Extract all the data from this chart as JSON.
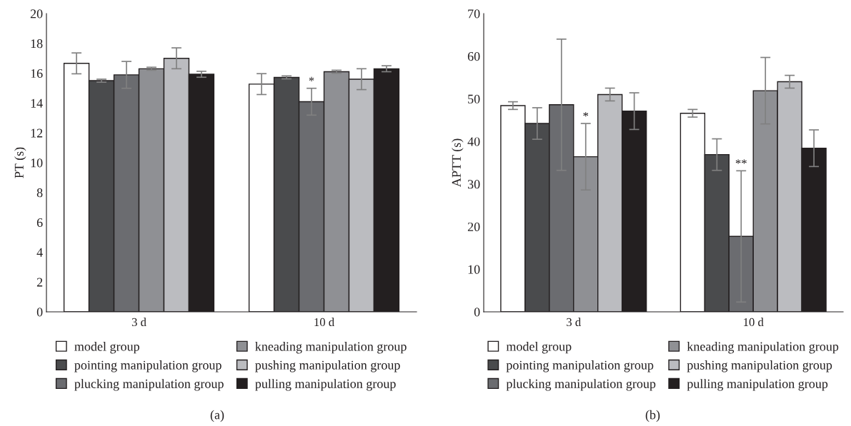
{
  "chart_data": [
    {
      "type": "bar",
      "categories": [
        "3 d",
        "10 d"
      ],
      "ylabel": "PT (s)",
      "ylim": [
        0,
        20
      ],
      "yticks": [
        0,
        2,
        4,
        6,
        8,
        10,
        12,
        14,
        16,
        18,
        20
      ],
      "grid": false,
      "legend": "bottom",
      "series": [
        {
          "name": "model group",
          "color": "#ffffff",
          "values": [
            16.66,
            15.27
          ],
          "errors": [
            0.7,
            0.7
          ]
        },
        {
          "name": "pointing manipulation group",
          "color": "#4a4b4d",
          "values": [
            15.5,
            15.72
          ],
          "errors": [
            0.1,
            0.1
          ]
        },
        {
          "name": "plucking manipulation group",
          "color": "#6b6c70",
          "values": [
            15.89,
            14.09
          ],
          "errors": [
            0.9,
            0.9
          ]
        },
        {
          "name": "kneading manipulation group",
          "color": "#8f9094",
          "values": [
            16.3,
            16.1
          ],
          "errors": [
            0.1,
            0.1
          ]
        },
        {
          "name": "pushing manipulation group",
          "color": "#bbbcc0",
          "values": [
            17.0,
            15.6
          ],
          "errors": [
            0.7,
            0.7
          ]
        },
        {
          "name": "pulling manipulation group",
          "color": "#231f20",
          "values": [
            15.93,
            16.3
          ],
          "errors": [
            0.2,
            0.2
          ]
        }
      ],
      "annotations": [
        {
          "text": "*",
          "x": "10 d",
          "y": 14.99
        },
        "(a)"
      ]
    },
    {
      "type": "bar",
      "categories": [
        "3 d",
        "10 d"
      ],
      "ylabel": "APTT (s)",
      "ylim": [
        0,
        70
      ],
      "yticks": [
        0,
        10,
        20,
        30,
        40,
        50,
        60,
        70
      ],
      "grid": false,
      "legend": "bottom",
      "series": [
        {
          "name": "model group",
          "color": "#ffffff",
          "values": [
            48.4,
            46.6
          ],
          "errors": [
            0.9,
            0.9
          ]
        },
        {
          "name": "pointing manipulation group",
          "color": "#4a4b4d",
          "values": [
            44.2,
            36.9
          ],
          "errors": [
            3.7,
            3.7
          ]
        },
        {
          "name": "plucking manipulation group",
          "color": "#6b6c70",
          "values": [
            48.6,
            17.7
          ],
          "errors": [
            15.4,
            15.4
          ]
        },
        {
          "name": "kneading manipulation group",
          "color": "#8f9094",
          "values": [
            36.4,
            51.9
          ],
          "errors": [
            7.8,
            7.8
          ]
        },
        {
          "name": "pushing manipulation group",
          "color": "#bbbcc0",
          "values": [
            51.0,
            54.0
          ],
          "errors": [
            1.5,
            1.5
          ]
        },
        {
          "name": "pulling manipulation group",
          "color": "#231f20",
          "values": [
            47.1,
            38.4
          ],
          "errors": [
            4.3,
            4.3
          ]
        }
      ],
      "annotations": [
        {
          "text": "*",
          "x": "3 d",
          "y": 44.2
        },
        {
          "text": "**",
          "x": "10 d",
          "y": 33.1
        },
        "(b)"
      ]
    }
  ]
}
